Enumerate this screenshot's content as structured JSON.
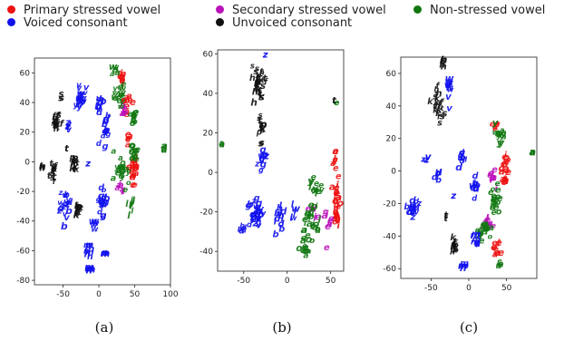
{
  "legend": {
    "items": [
      {
        "label": "Primary stressed vowel",
        "color": "#ee1111"
      },
      {
        "label": "Secondary stressed vowel",
        "color": "#bb11bb"
      },
      {
        "label": "Non-stressed vowel",
        "color": "#117711"
      },
      {
        "label": "Voiced consonant",
        "color": "#1111ee"
      },
      {
        "label": "Unvoiced consonant",
        "color": "#111111"
      }
    ]
  },
  "chart_data": [
    {
      "type": "scatter",
      "caption": "(a)",
      "xlim": [
        -90,
        100
      ],
      "ylim": [
        -83,
        70
      ],
      "xticks": [
        -50,
        0,
        50,
        100
      ],
      "yticks": [
        -80,
        -60,
        -40,
        -20,
        0,
        20,
        40,
        60
      ],
      "annotations": [
        {
          "text": "z",
          "x": -15,
          "y": -3
        },
        {
          "text": "t",
          "x": -45,
          "y": 7
        }
      ],
      "clusters": [
        {
          "class": 4,
          "x": 32,
          "y": 55,
          "sx": 4,
          "sy": 5,
          "n": 12,
          "chars": "aei"
        },
        {
          "class": 4,
          "x": 40,
          "y": 38,
          "sx": 6,
          "sy": 5,
          "n": 10,
          "chars": "aeo"
        },
        {
          "class": 4,
          "x": 48,
          "y": -5,
          "sx": 5,
          "sy": 10,
          "n": 22,
          "chars": "aeoi"
        },
        {
          "class": 4,
          "x": 42,
          "y": 12,
          "sx": 3,
          "sy": 3,
          "n": 5,
          "chars": "ae"
        },
        {
          "class": 5,
          "x": 35,
          "y": 32,
          "sx": 4,
          "sy": 4,
          "n": 8,
          "chars": "aei"
        },
        {
          "class": 5,
          "x": 30,
          "y": -20,
          "sx": 4,
          "sy": 5,
          "n": 8,
          "chars": "aei"
        },
        {
          "class": 6,
          "x": 22,
          "y": 60,
          "sx": 5,
          "sy": 3,
          "n": 5,
          "chars": "aw"
        },
        {
          "class": 6,
          "x": 30,
          "y": 44,
          "sx": 8,
          "sy": 6,
          "n": 14,
          "chars": "ywe"
        },
        {
          "class": 6,
          "x": 47,
          "y": 28,
          "sx": 5,
          "sy": 4,
          "n": 10,
          "chars": "aeo"
        },
        {
          "class": 6,
          "x": 50,
          "y": 5,
          "sx": 6,
          "sy": 6,
          "n": 12,
          "chars": "aeo"
        },
        {
          "class": 6,
          "x": 32,
          "y": -8,
          "sx": 9,
          "sy": 10,
          "n": 20,
          "chars": "aeoy"
        },
        {
          "class": 6,
          "x": 45,
          "y": -30,
          "sx": 5,
          "sy": 6,
          "n": 10,
          "chars": "il"
        },
        {
          "class": 6,
          "x": 92,
          "y": 7,
          "sx": 1,
          "sy": 2,
          "n": 4,
          "chars": "a"
        },
        {
          "class": 7,
          "x": -25,
          "y": 40,
          "sx": 6,
          "sy": 8,
          "n": 20,
          "chars": "vwy"
        },
        {
          "class": 7,
          "x": 2,
          "y": 38,
          "sx": 4,
          "sy": 5,
          "n": 8,
          "chars": "dbv"
        },
        {
          "class": 7,
          "x": 10,
          "y": 18,
          "sx": 5,
          "sy": 8,
          "n": 12,
          "chars": "dbg"
        },
        {
          "class": 7,
          "x": -42,
          "y": 22,
          "sx": 3,
          "sy": 3,
          "n": 6,
          "chars": "zv"
        },
        {
          "class": 7,
          "x": -47,
          "y": -30,
          "sx": 6,
          "sy": 10,
          "n": 18,
          "chars": "dbvz"
        },
        {
          "class": 7,
          "x": 5,
          "y": -30,
          "sx": 5,
          "sy": 8,
          "n": 15,
          "chars": "dbg"
        },
        {
          "class": 7,
          "x": -15,
          "y": -60,
          "sx": 3,
          "sy": 5,
          "n": 8,
          "chars": "nm"
        },
        {
          "class": 7,
          "x": 8,
          "y": -63,
          "sx": 2,
          "sy": 3,
          "n": 5,
          "chars": "nm"
        },
        {
          "class": 7,
          "x": -13,
          "y": -74,
          "sx": 3,
          "sy": 2,
          "n": 6,
          "chars": "nm"
        },
        {
          "class": 7,
          "x": -6,
          "y": -42,
          "sx": 2,
          "sy": 4,
          "n": 5,
          "chars": "lw"
        },
        {
          "class": 8,
          "x": -60,
          "y": 25,
          "sx": 4,
          "sy": 5,
          "n": 18,
          "chars": "sfth"
        },
        {
          "class": 8,
          "x": -65,
          "y": -10,
          "sx": 5,
          "sy": 6,
          "n": 12,
          "chars": "sftk"
        },
        {
          "class": 8,
          "x": -35,
          "y": -3,
          "sx": 4,
          "sy": 4,
          "n": 10,
          "chars": "ptk"
        },
        {
          "class": 8,
          "x": -30,
          "y": -35,
          "sx": 4,
          "sy": 5,
          "n": 12,
          "chars": "ptk"
        },
        {
          "class": 8,
          "x": -52,
          "y": 44,
          "sx": 1,
          "sy": 2,
          "n": 3,
          "chars": "s"
        },
        {
          "class": 8,
          "x": -80,
          "y": -5,
          "sx": 2,
          "sy": 2,
          "n": 4,
          "chars": "h"
        }
      ]
    },
    {
      "type": "scatter",
      "caption": "(b)",
      "xlim": [
        -80,
        65
      ],
      "ylim": [
        -50,
        62
      ],
      "xticks": [
        -50,
        0,
        50
      ],
      "yticks": [
        -40,
        -20,
        0,
        20,
        40,
        60
      ],
      "annotations": [
        {
          "text": "z",
          "x": -25,
          "y": 58
        },
        {
          "text": "t",
          "x": 54,
          "y": 35
        }
      ],
      "clusters": [
        {
          "class": 4,
          "x": 57,
          "y": -15,
          "sx": 3,
          "sy": 10,
          "n": 30,
          "chars": "aeoi"
        },
        {
          "class": 4,
          "x": 55,
          "y": 5,
          "sx": 2,
          "sy": 5,
          "n": 8,
          "chars": "aei"
        },
        {
          "class": 5,
          "x": 47,
          "y": -25,
          "sx": 4,
          "sy": 6,
          "n": 10,
          "chars": "aei"
        },
        {
          "class": 5,
          "x": 30,
          "y": -20,
          "sx": 4,
          "sy": 4,
          "n": 6,
          "chars": "aei"
        },
        {
          "class": 6,
          "x": 25,
          "y": -25,
          "sx": 10,
          "sy": 8,
          "n": 28,
          "chars": "aeoi"
        },
        {
          "class": 6,
          "x": 20,
          "y": -40,
          "sx": 5,
          "sy": 5,
          "n": 14,
          "chars": "aeo"
        },
        {
          "class": 6,
          "x": 35,
          "y": -10,
          "sx": 8,
          "sy": 6,
          "n": 12,
          "chars": "yle"
        },
        {
          "class": 6,
          "x": 57,
          "y": 34,
          "sx": 1,
          "sy": 1,
          "n": 2,
          "chars": "e"
        },
        {
          "class": 6,
          "x": -75,
          "y": 13,
          "sx": 1,
          "sy": 1,
          "n": 3,
          "chars": "a"
        },
        {
          "class": 7,
          "x": -35,
          "y": -22,
          "sx": 10,
          "sy": 6,
          "n": 30,
          "chars": "dbvzgn"
        },
        {
          "class": 7,
          "x": -30,
          "y": 7,
          "sx": 6,
          "sy": 4,
          "n": 12,
          "chars": "zvg"
        },
        {
          "class": 7,
          "x": -10,
          "y": -25,
          "sx": 6,
          "sy": 6,
          "n": 12,
          "chars": "dbl"
        },
        {
          "class": 7,
          "x": -50,
          "y": -28,
          "sx": 3,
          "sy": 3,
          "n": 5,
          "chars": "db"
        },
        {
          "class": 7,
          "x": 8,
          "y": -20,
          "sx": 3,
          "sy": 5,
          "n": 6,
          "chars": "lw"
        },
        {
          "class": 8,
          "x": -33,
          "y": 44,
          "sx": 6,
          "sy": 9,
          "n": 30,
          "chars": "sfthk"
        },
        {
          "class": 8,
          "x": -30,
          "y": 22,
          "sx": 5,
          "sy": 4,
          "n": 10,
          "chars": "ptks"
        },
        {
          "class": 8,
          "x": -30,
          "y": 13,
          "sx": 1,
          "sy": 1,
          "n": 2,
          "chars": "s"
        }
      ]
    },
    {
      "type": "scatter",
      "caption": "(c)",
      "xlim": [
        -90,
        90
      ],
      "ylim": [
        -66,
        70
      ],
      "xticks": [
        -50,
        0,
        50
      ],
      "yticks": [
        -60,
        -40,
        -20,
        0,
        20,
        40,
        60
      ],
      "annotations": [
        {
          "text": "z",
          "x": -20,
          "y": -17
        },
        {
          "text": "y",
          "x": 35,
          "y": 28
        }
      ],
      "clusters": [
        {
          "class": 4,
          "x": 48,
          "y": 0,
          "sx": 4,
          "sy": 8,
          "n": 20,
          "chars": "aeoi"
        },
        {
          "class": 4,
          "x": 38,
          "y": -50,
          "sx": 4,
          "sy": 5,
          "n": 10,
          "chars": "aei"
        },
        {
          "class": 4,
          "x": 35,
          "y": 25,
          "sx": 3,
          "sy": 3,
          "n": 5,
          "chars": "ae"
        },
        {
          "class": 5,
          "x": 30,
          "y": -5,
          "sx": 5,
          "sy": 6,
          "n": 10,
          "chars": "aei"
        },
        {
          "class": 5,
          "x": 25,
          "y": -33,
          "sx": 6,
          "sy": 4,
          "n": 12,
          "chars": "aei"
        },
        {
          "class": 6,
          "x": 40,
          "y": 22,
          "sx": 6,
          "sy": 5,
          "n": 12,
          "chars": "yaw"
        },
        {
          "class": 6,
          "x": 35,
          "y": -20,
          "sx": 6,
          "sy": 8,
          "n": 18,
          "chars": "aeo"
        },
        {
          "class": 6,
          "x": 20,
          "y": -38,
          "sx": 8,
          "sy": 5,
          "n": 18,
          "chars": "aeo"
        },
        {
          "class": 6,
          "x": 40,
          "y": -58,
          "sx": 3,
          "sy": 2,
          "n": 5,
          "chars": "ae"
        },
        {
          "class": 6,
          "x": 85,
          "y": 12,
          "sx": 1,
          "sy": 2,
          "n": 3,
          "chars": "a"
        },
        {
          "class": 7,
          "x": -75,
          "y": -25,
          "sx": 6,
          "sy": 5,
          "n": 18,
          "chars": "dbvz"
        },
        {
          "class": 7,
          "x": -55,
          "y": 5,
          "sx": 3,
          "sy": 3,
          "n": 6,
          "chars": "zv"
        },
        {
          "class": 7,
          "x": -25,
          "y": 52,
          "sx": 3,
          "sy": 8,
          "n": 12,
          "chars": "vwy"
        },
        {
          "class": 7,
          "x": -10,
          "y": 5,
          "sx": 4,
          "sy": 5,
          "n": 8,
          "chars": "dbg"
        },
        {
          "class": 7,
          "x": 8,
          "y": -10,
          "sx": 4,
          "sy": 8,
          "n": 10,
          "chars": "dbw"
        },
        {
          "class": 7,
          "x": 10,
          "y": -45,
          "sx": 4,
          "sy": 5,
          "n": 8,
          "chars": "nml"
        },
        {
          "class": 7,
          "x": -5,
          "y": -60,
          "sx": 3,
          "sy": 2,
          "n": 5,
          "chars": "nm"
        },
        {
          "class": 7,
          "x": -40,
          "y": -5,
          "sx": 3,
          "sy": 3,
          "n": 5,
          "chars": "bd"
        },
        {
          "class": 8,
          "x": -40,
          "y": 40,
          "sx": 5,
          "sy": 10,
          "n": 20,
          "chars": "sfthk"
        },
        {
          "class": 8,
          "x": -33,
          "y": 65,
          "sx": 2,
          "sy": 2,
          "n": 5,
          "chars": "h"
        },
        {
          "class": 8,
          "x": -20,
          "y": -48,
          "sx": 3,
          "sy": 4,
          "n": 12,
          "chars": "ptk"
        },
        {
          "class": 8,
          "x": -30,
          "y": -30,
          "sx": 1,
          "sy": 1,
          "n": 3,
          "chars": "t"
        }
      ]
    }
  ]
}
